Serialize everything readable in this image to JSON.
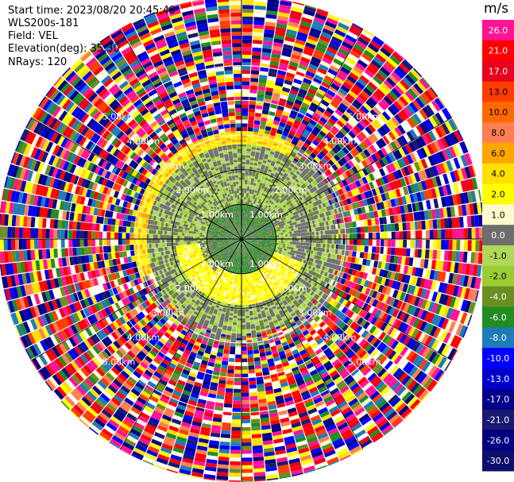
{
  "header": {
    "start_time": "Start time: 2023/08/20 20:45:49",
    "instrument": "WLS200s-181",
    "field": "Field: VEL",
    "elevation": "Elevation(deg): 35.30",
    "nrays": "NRays: 120"
  },
  "colorbar": {
    "title": "m/s",
    "tick_labels": [
      "26.0",
      "21.0",
      "17.0",
      "13.0",
      "10.0",
      "8.0",
      "6.0",
      "4.0",
      "2.0",
      "1.0",
      "0.0",
      "-1.0",
      "-2.0",
      "-4.0",
      "-6.0",
      "-8.0",
      "-10.0",
      "-13.0",
      "-17.0",
      "-21.0",
      "-26.0",
      "-30.0"
    ],
    "colors": [
      "#ff1493",
      "#ff0000",
      "#e8001e",
      "#ff3c00",
      "#ff6a00",
      "#ff7f50",
      "#ffa500",
      "#ffe000",
      "#ffff00",
      "#fffacd",
      "#6e6e6e",
      "#b0d85a",
      "#9acd32",
      "#6b8e23",
      "#228b22",
      "#1e7bb8",
      "#0000ff",
      "#0000cd",
      "#00008b",
      "#191970",
      "#000080",
      "#0d0d6b"
    ]
  },
  "chart_data": {
    "type": "ppi",
    "field": "VEL",
    "units": "m/s",
    "nrays": 120,
    "elevation_deg": 35.3,
    "range_rings_km": [
      1.0,
      2.0,
      3.0,
      4.0,
      5.0
    ],
    "range_ring_labels": [
      "1.00km",
      "2.00km",
      "3.00km",
      "4.00km",
      "5.00km"
    ],
    "max_range_km": 7.0,
    "velocity_range": [
      -30.0,
      26.0
    ],
    "regions": [
      {
        "from_km": 0.0,
        "to_km": 1.0,
        "pattern": "dark green, gray radial streaks"
      },
      {
        "from_km": 1.0,
        "to_km": 1.9,
        "pattern": "yellow (+2 to +4 m/s) southeast, green northwest"
      },
      {
        "from_km": 1.9,
        "to_km": 3.0,
        "pattern": "gray/light green ring, yellow-orange outer edge north/west"
      },
      {
        "from_km": 3.0,
        "to_km": 7.0,
        "pattern": "noise, random colors"
      }
    ]
  }
}
